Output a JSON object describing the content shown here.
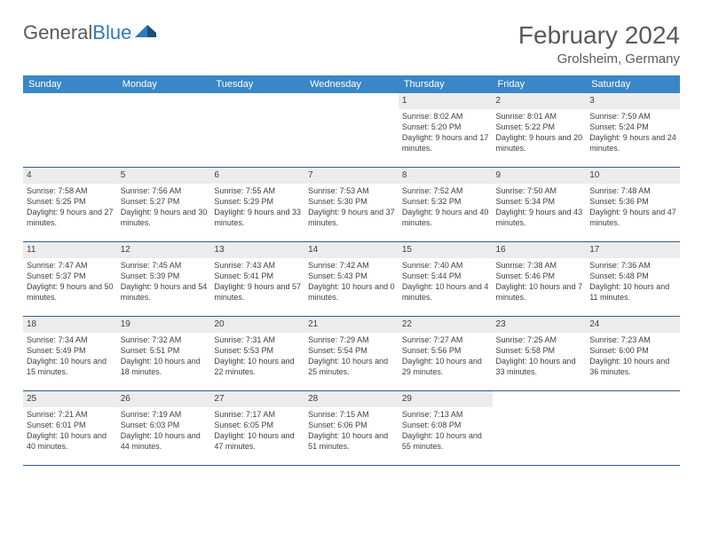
{
  "logo": {
    "text1": "General",
    "text2": "Blue"
  },
  "title": "February 2024",
  "location": "Grolsheim, Germany",
  "header_bg": "#3b86c6",
  "daynum_bg": "#ececec",
  "divider_color": "#2f5f8f",
  "text_color": "#404040",
  "days": [
    "Sunday",
    "Monday",
    "Tuesday",
    "Wednesday",
    "Thursday",
    "Friday",
    "Saturday"
  ],
  "weeks": [
    {
      "nums": [
        "",
        "",
        "",
        "",
        "1",
        "2",
        "3"
      ],
      "cells": [
        null,
        null,
        null,
        null,
        {
          "sunrise": "8:02 AM",
          "sunset": "5:20 PM",
          "dh": "9",
          "dm": "17"
        },
        {
          "sunrise": "8:01 AM",
          "sunset": "5:22 PM",
          "dh": "9",
          "dm": "20"
        },
        {
          "sunrise": "7:59 AM",
          "sunset": "5:24 PM",
          "dh": "9",
          "dm": "24"
        }
      ]
    },
    {
      "nums": [
        "4",
        "5",
        "6",
        "7",
        "8",
        "9",
        "10"
      ],
      "cells": [
        {
          "sunrise": "7:58 AM",
          "sunset": "5:25 PM",
          "dh": "9",
          "dm": "27"
        },
        {
          "sunrise": "7:56 AM",
          "sunset": "5:27 PM",
          "dh": "9",
          "dm": "30"
        },
        {
          "sunrise": "7:55 AM",
          "sunset": "5:29 PM",
          "dh": "9",
          "dm": "33"
        },
        {
          "sunrise": "7:53 AM",
          "sunset": "5:30 PM",
          "dh": "9",
          "dm": "37"
        },
        {
          "sunrise": "7:52 AM",
          "sunset": "5:32 PM",
          "dh": "9",
          "dm": "40"
        },
        {
          "sunrise": "7:50 AM",
          "sunset": "5:34 PM",
          "dh": "9",
          "dm": "43"
        },
        {
          "sunrise": "7:48 AM",
          "sunset": "5:36 PM",
          "dh": "9",
          "dm": "47"
        }
      ]
    },
    {
      "nums": [
        "11",
        "12",
        "13",
        "14",
        "15",
        "16",
        "17"
      ],
      "cells": [
        {
          "sunrise": "7:47 AM",
          "sunset": "5:37 PM",
          "dh": "9",
          "dm": "50"
        },
        {
          "sunrise": "7:45 AM",
          "sunset": "5:39 PM",
          "dh": "9",
          "dm": "54"
        },
        {
          "sunrise": "7:43 AM",
          "sunset": "5:41 PM",
          "dh": "9",
          "dm": "57"
        },
        {
          "sunrise": "7:42 AM",
          "sunset": "5:43 PM",
          "dh": "10",
          "dm": "0"
        },
        {
          "sunrise": "7:40 AM",
          "sunset": "5:44 PM",
          "dh": "10",
          "dm": "4"
        },
        {
          "sunrise": "7:38 AM",
          "sunset": "5:46 PM",
          "dh": "10",
          "dm": "7"
        },
        {
          "sunrise": "7:36 AM",
          "sunset": "5:48 PM",
          "dh": "10",
          "dm": "11"
        }
      ]
    },
    {
      "nums": [
        "18",
        "19",
        "20",
        "21",
        "22",
        "23",
        "24"
      ],
      "cells": [
        {
          "sunrise": "7:34 AM",
          "sunset": "5:49 PM",
          "dh": "10",
          "dm": "15"
        },
        {
          "sunrise": "7:32 AM",
          "sunset": "5:51 PM",
          "dh": "10",
          "dm": "18"
        },
        {
          "sunrise": "7:31 AM",
          "sunset": "5:53 PM",
          "dh": "10",
          "dm": "22"
        },
        {
          "sunrise": "7:29 AM",
          "sunset": "5:54 PM",
          "dh": "10",
          "dm": "25"
        },
        {
          "sunrise": "7:27 AM",
          "sunset": "5:56 PM",
          "dh": "10",
          "dm": "29"
        },
        {
          "sunrise": "7:25 AM",
          "sunset": "5:58 PM",
          "dh": "10",
          "dm": "33"
        },
        {
          "sunrise": "7:23 AM",
          "sunset": "6:00 PM",
          "dh": "10",
          "dm": "36"
        }
      ]
    },
    {
      "nums": [
        "25",
        "26",
        "27",
        "28",
        "29",
        "",
        ""
      ],
      "cells": [
        {
          "sunrise": "7:21 AM",
          "sunset": "6:01 PM",
          "dh": "10",
          "dm": "40"
        },
        {
          "sunrise": "7:19 AM",
          "sunset": "6:03 PM",
          "dh": "10",
          "dm": "44"
        },
        {
          "sunrise": "7:17 AM",
          "sunset": "6:05 PM",
          "dh": "10",
          "dm": "47"
        },
        {
          "sunrise": "7:15 AM",
          "sunset": "6:06 PM",
          "dh": "10",
          "dm": "51"
        },
        {
          "sunrise": "7:13 AM",
          "sunset": "6:08 PM",
          "dh": "10",
          "dm": "55"
        },
        null,
        null
      ]
    }
  ],
  "labels": {
    "sunrise": "Sunrise:",
    "sunset": "Sunset:",
    "daylight": "Daylight:",
    "hours": "hours",
    "and": "and",
    "minutes": "minutes."
  }
}
